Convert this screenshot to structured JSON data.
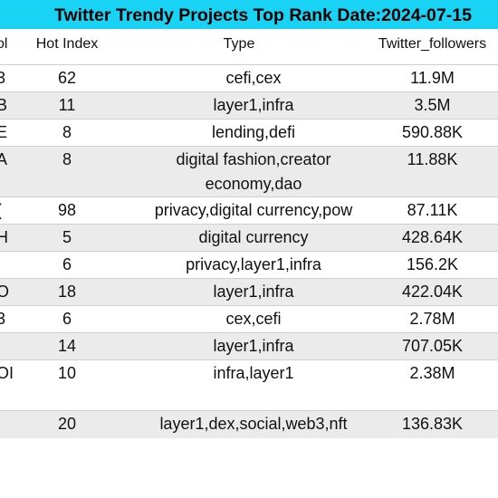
{
  "title": "Twitter Trendy Projects Top Rank Date:2024-07-15",
  "columns": {
    "symbol": "ol",
    "hot_index": "Hot Index",
    "type": "Type",
    "followers": "Twitter_followers"
  },
  "rows": [
    {
      "symbol": "3",
      "hot_index": "62",
      "type": [
        "cefi,cex"
      ],
      "followers": "11.9M",
      "shade": false
    },
    {
      "symbol": "B",
      "hot_index": "11",
      "type": [
        "layer1,infra"
      ],
      "followers": "3.5M",
      "shade": true
    },
    {
      "symbol": "E",
      "hot_index": "8",
      "type": [
        "lending,defi"
      ],
      "followers": "590.88K",
      "shade": false
    },
    {
      "symbol": "A",
      "hot_index": "8",
      "type": [
        "digital fashion,creator",
        "economy,dao"
      ],
      "followers": "11.88K",
      "shade": true
    },
    {
      "symbol": "(",
      "hot_index": "98",
      "type": [
        "privacy,digital currency,pow"
      ],
      "followers": "87.11K",
      "shade": false
    },
    {
      "symbol": "H",
      "hot_index": "5",
      "type": [
        "digital currency"
      ],
      "followers": "428.64K",
      "shade": true
    },
    {
      "symbol": "",
      "hot_index": "6",
      "type": [
        "privacy,layer1,infra"
      ],
      "followers": "156.2K",
      "shade": false
    },
    {
      "symbol": "O",
      "hot_index": "18",
      "type": [
        "layer1,infra"
      ],
      "followers": "422.04K",
      "shade": true
    },
    {
      "symbol": "3",
      "hot_index": "6",
      "type": [
        "cex,cefi"
      ],
      "followers": "2.78M",
      "shade": false
    },
    {
      "symbol": "",
      "hot_index": "14",
      "type": [
        "layer1,infra"
      ],
      "followers": "707.05K",
      "shade": true
    },
    {
      "symbol": "OI",
      "hot_index": "10",
      "type": [
        "infra,layer1"
      ],
      "followers": "2.38M",
      "shade": false
    },
    {
      "symbol": "",
      "hot_index": "20",
      "type": [
        "layer1,dex,social,web3,nft"
      ],
      "followers": "136.83K",
      "shade": true
    }
  ]
}
